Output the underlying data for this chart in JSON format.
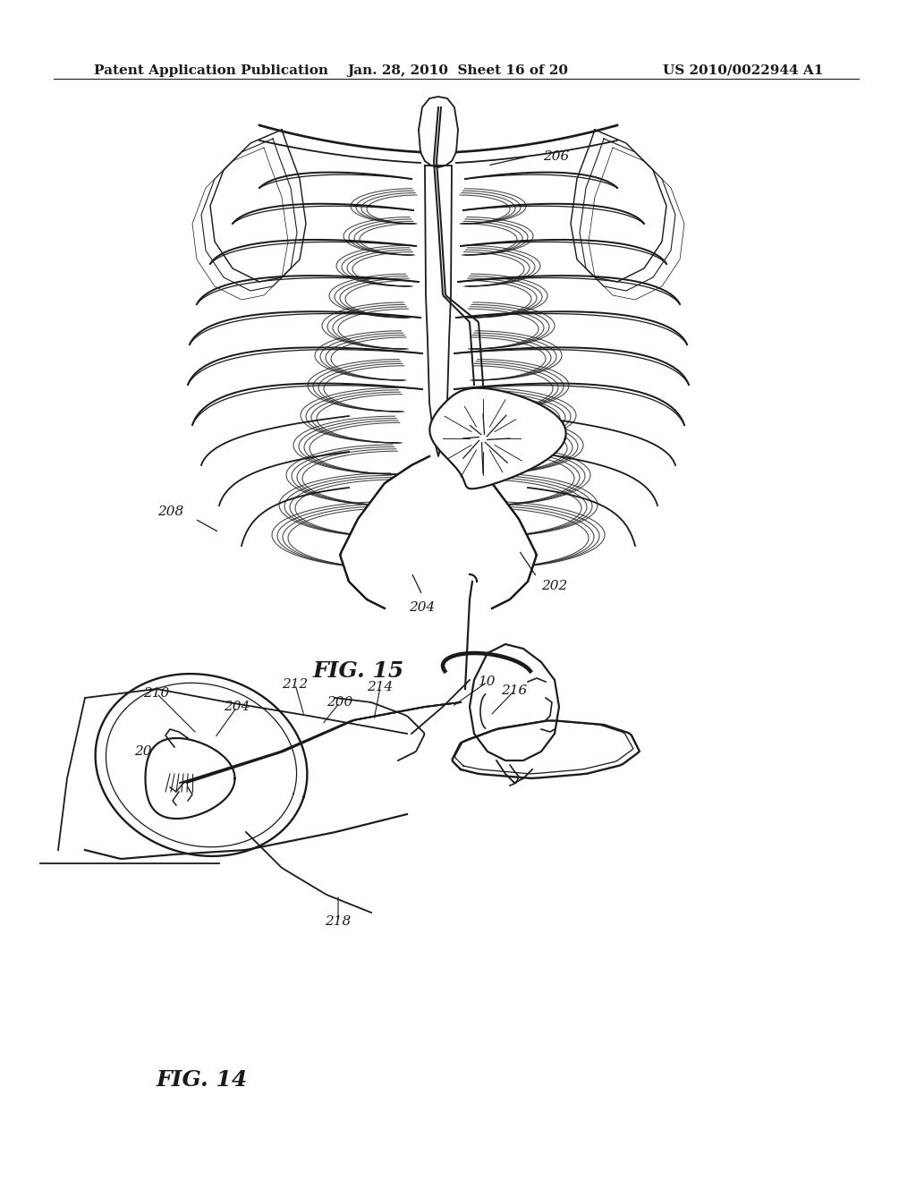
{
  "background_color": "#ffffff",
  "header_left": "Patent Application Publication",
  "header_center": "Jan. 28, 2010  Sheet 16 of 20",
  "header_right": "US 2010/0022944 A1",
  "fig15_label": "FIG.15",
  "fig14_label": "FIG.14",
  "line_color": "#1a1a1a",
  "text_color": "#1a1a1a",
  "header_fontsize": 11,
  "label_fontsize": 11,
  "figlabel_fontsize": 18,
  "annot_fontsize": 11
}
